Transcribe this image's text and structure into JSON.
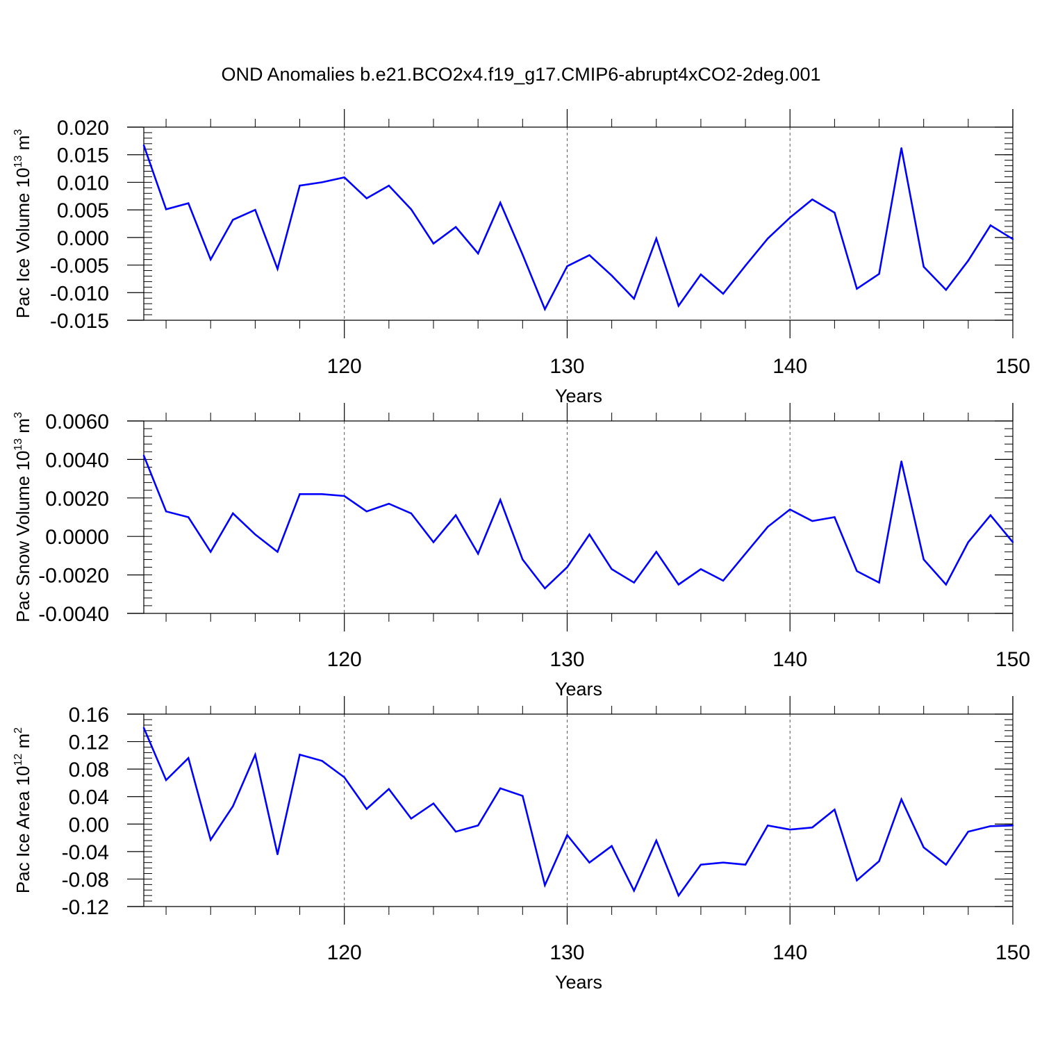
{
  "title": "OND Anomalies b.e21.BCO2x4.f19_g17.CMIP6-abrupt4xCO2-2deg.001",
  "line_color": "#0000ff",
  "chart_data": [
    {
      "type": "line",
      "ylabel": "Pac Ice Volume 10",
      "ylabel_exp": "13",
      "ylabel_unit": " m",
      "ylabel_unit_exp": "3",
      "xlabel": "Years",
      "xlim": [
        111,
        150
      ],
      "ylim": [
        -0.015,
        0.02
      ],
      "yticks": [
        0.02,
        0.015,
        0.01,
        0.005,
        0.0,
        -0.005,
        -0.01,
        -0.015
      ],
      "ytick_labels": [
        "0.020",
        "0.015",
        "0.010",
        "0.005",
        "0.000",
        "-0.005",
        "-0.010",
        "-0.015"
      ],
      "xticks": [
        120,
        130,
        140,
        150
      ],
      "xtick_labels": [
        "120",
        "130",
        "140",
        "150"
      ],
      "x": [
        111,
        112,
        113,
        114,
        115,
        116,
        117,
        118,
        119,
        120,
        121,
        122,
        123,
        124,
        125,
        126,
        127,
        128,
        129,
        130,
        131,
        132,
        133,
        134,
        135,
        136,
        137,
        138,
        139,
        140,
        141,
        142,
        143,
        144,
        145,
        146,
        147,
        148,
        149,
        150
      ],
      "values": [
        0.0167,
        0.0051,
        0.0062,
        -0.004,
        0.0032,
        0.005,
        -0.0057,
        0.0094,
        0.01,
        0.0109,
        0.0071,
        0.0094,
        0.0051,
        -0.0011,
        0.0019,
        -0.0029,
        0.0063,
        -0.0031,
        -0.013,
        -0.0052,
        -0.0032,
        -0.0069,
        -0.0111,
        -0.0002,
        -0.0124,
        -0.0067,
        -0.0102,
        -0.0051,
        -0.0002,
        0.0036,
        0.0069,
        0.0045,
        -0.0093,
        -0.0066,
        0.0162,
        -0.0053,
        -0.0095,
        -0.0042,
        0.0022,
        -0.0003
      ],
      "grid": "vertical-dashed"
    },
    {
      "type": "line",
      "ylabel": "Pac Snow Volume 10",
      "ylabel_exp": "13",
      "ylabel_unit": " m",
      "ylabel_unit_exp": "3",
      "xlabel": "Years",
      "xlim": [
        111,
        150
      ],
      "ylim": [
        -0.004,
        0.006
      ],
      "yticks": [
        0.006,
        0.004,
        0.002,
        0.0,
        -0.002,
        -0.004
      ],
      "ytick_labels": [
        "0.0060",
        "0.0040",
        "0.0020",
        "0.0000",
        "-0.0020",
        "-0.0040"
      ],
      "xticks": [
        120,
        130,
        140,
        150
      ],
      "xtick_labels": [
        "120",
        "130",
        "140",
        "150"
      ],
      "x": [
        111,
        112,
        113,
        114,
        115,
        116,
        117,
        118,
        119,
        120,
        121,
        122,
        123,
        124,
        125,
        126,
        127,
        128,
        129,
        130,
        131,
        132,
        133,
        134,
        135,
        136,
        137,
        138,
        139,
        140,
        141,
        142,
        143,
        144,
        145,
        146,
        147,
        148,
        149,
        150
      ],
      "values": [
        0.0042,
        0.0013,
        0.001,
        -0.0008,
        0.0012,
        0.0001,
        -0.0008,
        0.0022,
        0.0022,
        0.0021,
        0.0013,
        0.0017,
        0.0012,
        -0.0003,
        0.0011,
        -0.0009,
        0.0019,
        -0.0012,
        -0.0027,
        -0.0016,
        0.0001,
        -0.0017,
        -0.0024,
        -0.0008,
        -0.0025,
        -0.0017,
        -0.0023,
        -0.0009,
        0.0005,
        0.0014,
        0.0008,
        0.001,
        -0.0018,
        -0.0024,
        0.0039,
        -0.0012,
        -0.0025,
        -0.0003,
        0.0011,
        -0.0003
      ],
      "grid": "vertical-dashed"
    },
    {
      "type": "line",
      "ylabel": "Pac Ice Area 10",
      "ylabel_exp": "12",
      "ylabel_unit": " m",
      "ylabel_unit_exp": "2",
      "xlabel": "Years",
      "xlim": [
        111,
        150
      ],
      "ylim": [
        -0.12,
        0.16
      ],
      "yticks": [
        0.16,
        0.12,
        0.08,
        0.04,
        0.0,
        -0.04,
        -0.08,
        -0.12
      ],
      "ytick_labels": [
        "0.16",
        "0.12",
        "0.08",
        "0.04",
        "0.00",
        "-0.04",
        "-0.08",
        "-0.12"
      ],
      "xticks": [
        120,
        130,
        140,
        150
      ],
      "xtick_labels": [
        "120",
        "130",
        "140",
        "150"
      ],
      "x": [
        111,
        112,
        113,
        114,
        115,
        116,
        117,
        118,
        119,
        120,
        121,
        122,
        123,
        124,
        125,
        126,
        127,
        128,
        129,
        130,
        131,
        132,
        133,
        134,
        135,
        136,
        137,
        138,
        139,
        140,
        141,
        142,
        143,
        144,
        145,
        146,
        147,
        148,
        149,
        150
      ],
      "values": [
        0.14,
        0.064,
        0.096,
        -0.023,
        0.026,
        0.101,
        -0.044,
        0.101,
        0.092,
        0.068,
        0.022,
        0.051,
        0.008,
        0.03,
        -0.011,
        -0.002,
        0.052,
        0.041,
        -0.089,
        -0.016,
        -0.056,
        -0.032,
        -0.097,
        -0.024,
        -0.104,
        -0.059,
        -0.056,
        -0.059,
        -0.002,
        -0.008,
        -0.005,
        0.021,
        -0.082,
        -0.054,
        0.036,
        -0.034,
        -0.059,
        -0.011,
        -0.003,
        -0.002
      ],
      "grid": "vertical-dashed"
    }
  ]
}
